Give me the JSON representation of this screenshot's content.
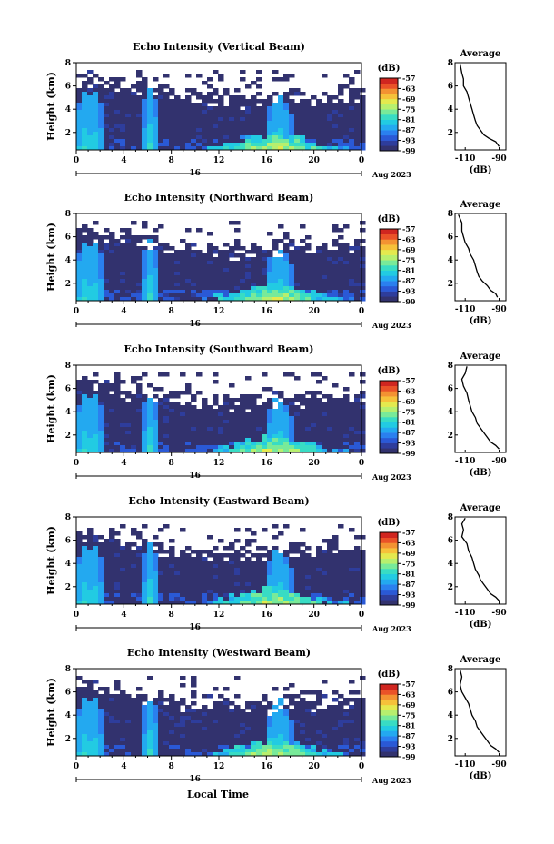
{
  "page": {
    "xlabel": "Local Time"
  },
  "shared": {
    "ylabel": "Height (km)",
    "date_number": "16",
    "date_label": "Aug 2023",
    "colorbar_unit": "(dB)",
    "colorbar_ticks": [
      "-57",
      "-63",
      "-69",
      "-75",
      "-81",
      "-87",
      "-93",
      "-99"
    ],
    "avg_title": "Average",
    "avg_xlabel": "(dB)"
  },
  "colors": {
    "colormap": [
      "#32326e",
      "#2e3d9c",
      "#2a59d6",
      "#2a80ef",
      "#23a9f0",
      "#22cbe2",
      "#38dcc4",
      "#78ea99",
      "#b7ef6e",
      "#e4e94e",
      "#f6c13a",
      "#f39232",
      "#ea5228",
      "#d02620"
    ]
  },
  "chart_data": [
    {
      "type": "heatmap",
      "title": "Echo Intensity (Vertical Beam)",
      "ylabel": "Height (km)",
      "x_ticks": [
        "0",
        "4",
        "8",
        "12",
        "16",
        "20",
        "0"
      ],
      "x_range_hours": [
        0,
        24
      ],
      "y_ticks": [
        "2",
        "4",
        "6",
        "8"
      ],
      "y_range_km": [
        0.5,
        8
      ],
      "colorbar": {
        "unit": "(dB)",
        "range": [
          -99,
          -57
        ],
        "ticks": [
          -57,
          -63,
          -69,
          -75,
          -81,
          -87,
          -93,
          -99
        ]
      },
      "average_profile": {
        "title": "Average",
        "xlabel": "(dB)",
        "x_ticks": [
          "-110",
          "-90"
        ],
        "y_ticks": [
          "2",
          "4",
          "6",
          "8"
        ],
        "points": [
          [
            -113,
            7.9
          ],
          [
            -112,
            7.1
          ],
          [
            -111,
            6.6
          ],
          [
            -111,
            6.0
          ],
          [
            -109,
            5.5
          ],
          [
            -108,
            5.0
          ],
          [
            -107,
            4.5
          ],
          [
            -106,
            4.0
          ],
          [
            -105,
            3.5
          ],
          [
            -104,
            3.0
          ],
          [
            -103,
            2.6
          ],
          [
            -101,
            2.2
          ],
          [
            -99,
            1.8
          ],
          [
            -96,
            1.5
          ],
          [
            -92,
            1.2
          ],
          [
            -90,
            0.8
          ]
        ]
      }
    },
    {
      "type": "heatmap",
      "title": "Echo Intensity (Northward Beam)",
      "ylabel": "Height (km)",
      "x_ticks": [
        "0",
        "4",
        "8",
        "12",
        "16",
        "20",
        "0"
      ],
      "x_range_hours": [
        0,
        24
      ],
      "y_ticks": [
        "2",
        "4",
        "6",
        "8"
      ],
      "y_range_km": [
        0.5,
        8
      ],
      "colorbar": {
        "unit": "(dB)",
        "range": [
          -99,
          -57
        ],
        "ticks": [
          -57,
          -63,
          -69,
          -75,
          -81,
          -87,
          -93,
          -99
        ]
      },
      "average_profile": {
        "title": "Average",
        "xlabel": "(dB)",
        "x_ticks": [
          "-110",
          "-90"
        ],
        "y_ticks": [
          "2",
          "4",
          "6",
          "8"
        ],
        "points": [
          [
            -114,
            7.9
          ],
          [
            -112,
            7.2
          ],
          [
            -112,
            6.5
          ],
          [
            -111,
            6.0
          ],
          [
            -110,
            5.5
          ],
          [
            -108,
            5.0
          ],
          [
            -107,
            4.5
          ],
          [
            -105,
            4.0
          ],
          [
            -104,
            3.5
          ],
          [
            -103,
            3.0
          ],
          [
            -102,
            2.6
          ],
          [
            -100,
            2.2
          ],
          [
            -97,
            1.8
          ],
          [
            -95,
            1.4
          ],
          [
            -92,
            1.1
          ],
          [
            -91,
            0.8
          ]
        ]
      }
    },
    {
      "type": "heatmap",
      "title": "Echo Intensity (Southward Beam)",
      "ylabel": "Height (km)",
      "x_ticks": [
        "0",
        "4",
        "8",
        "12",
        "16",
        "20",
        "0"
      ],
      "x_range_hours": [
        0,
        24
      ],
      "y_ticks": [
        "2",
        "4",
        "6",
        "8"
      ],
      "y_range_km": [
        0.5,
        8
      ],
      "colorbar": {
        "unit": "(dB)",
        "range": [
          -99,
          -57
        ],
        "ticks": [
          -57,
          -63,
          -69,
          -75,
          -81,
          -87,
          -93,
          -99
        ]
      },
      "average_profile": {
        "title": "Average",
        "xlabel": "(dB)",
        "x_ticks": [
          "-110",
          "-90"
        ],
        "y_ticks": [
          "2",
          "4",
          "6",
          "8"
        ],
        "points": [
          [
            -109,
            7.9
          ],
          [
            -110,
            7.3
          ],
          [
            -112,
            6.8
          ],
          [
            -111,
            6.2
          ],
          [
            -109,
            5.6
          ],
          [
            -108,
            5.0
          ],
          [
            -107,
            4.5
          ],
          [
            -106,
            4.0
          ],
          [
            -104,
            3.5
          ],
          [
            -103,
            3.0
          ],
          [
            -101,
            2.6
          ],
          [
            -99,
            2.2
          ],
          [
            -97,
            1.8
          ],
          [
            -95,
            1.4
          ],
          [
            -92,
            1.1
          ],
          [
            -90,
            0.8
          ]
        ]
      }
    },
    {
      "type": "heatmap",
      "title": "Echo Intensity (Eastward Beam)",
      "ylabel": "Height (km)",
      "x_ticks": [
        "0",
        "4",
        "8",
        "12",
        "16",
        "20",
        "0"
      ],
      "x_range_hours": [
        0,
        24
      ],
      "y_ticks": [
        "2",
        "4",
        "6",
        "8"
      ],
      "y_range_km": [
        0.5,
        8
      ],
      "colorbar": {
        "unit": "(dB)",
        "range": [
          -99,
          -57
        ],
        "ticks": [
          -57,
          -63,
          -69,
          -75,
          -81,
          -87,
          -93,
          -99
        ]
      },
      "average_profile": {
        "title": "Average",
        "xlabel": "(dB)",
        "x_ticks": [
          "-110",
          "-90"
        ],
        "y_ticks": [
          "2",
          "4",
          "6",
          "8"
        ],
        "points": [
          [
            -110,
            7.9
          ],
          [
            -112,
            7.4
          ],
          [
            -111,
            6.9
          ],
          [
            -112,
            6.3
          ],
          [
            -109,
            5.7
          ],
          [
            -108,
            5.1
          ],
          [
            -106,
            4.5
          ],
          [
            -105,
            4.0
          ],
          [
            -104,
            3.5
          ],
          [
            -102,
            3.0
          ],
          [
            -101,
            2.6
          ],
          [
            -99,
            2.2
          ],
          [
            -97,
            1.8
          ],
          [
            -95,
            1.4
          ],
          [
            -92,
            1.1
          ],
          [
            -90,
            0.8
          ]
        ]
      }
    },
    {
      "type": "heatmap",
      "title": "Echo Intensity (Westward Beam)",
      "ylabel": "Height (km)",
      "x_ticks": [
        "0",
        "4",
        "8",
        "12",
        "16",
        "20",
        "0"
      ],
      "x_range_hours": [
        0,
        24
      ],
      "y_ticks": [
        "2",
        "4",
        "6",
        "8"
      ],
      "y_range_km": [
        0.5,
        8
      ],
      "colorbar": {
        "unit": "(dB)",
        "range": [
          -99,
          -57
        ],
        "ticks": [
          -57,
          -63,
          -69,
          -75,
          -81,
          -87,
          -93,
          -99
        ]
      },
      "average_profile": {
        "title": "Average",
        "xlabel": "(dB)",
        "x_ticks": [
          "-110",
          "-90"
        ],
        "y_ticks": [
          "2",
          "4",
          "6",
          "8"
        ],
        "points": [
          [
            -113,
            7.9
          ],
          [
            -112,
            7.3
          ],
          [
            -113,
            6.6
          ],
          [
            -112,
            6.0
          ],
          [
            -110,
            5.5
          ],
          [
            -108,
            5.0
          ],
          [
            -107,
            4.5
          ],
          [
            -106,
            4.0
          ],
          [
            -104,
            3.5
          ],
          [
            -103,
            3.0
          ],
          [
            -101,
            2.6
          ],
          [
            -99,
            2.2
          ],
          [
            -97,
            1.8
          ],
          [
            -95,
            1.4
          ],
          [
            -92,
            1.1
          ],
          [
            -90,
            0.8
          ]
        ]
      }
    }
  ]
}
